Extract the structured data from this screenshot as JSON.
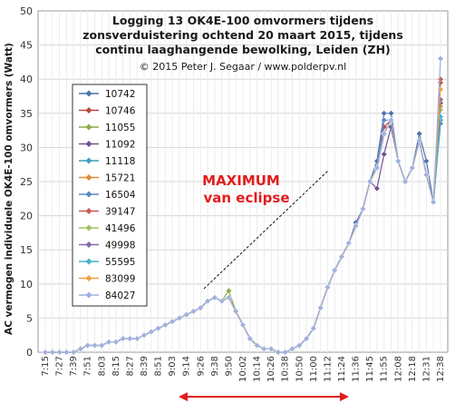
{
  "chart_data": {
    "type": "line",
    "title_lines": [
      "Logging 13 OK4E-100 omvormers tijdens",
      "zonsverduistering ochtend 20 maart 2015, tijdens",
      "continu laaghangende bewolking, Leiden (ZH)"
    ],
    "subtitle": "© 2015 Peter J. Segaar / www.polderpv.nl",
    "ylabel": "AC vermogen individuele OK4E-100 omvormers (Watt)",
    "xlabel": "",
    "ylim": [
      0,
      50
    ],
    "yticks": [
      0,
      5,
      10,
      15,
      20,
      25,
      30,
      35,
      40,
      45,
      50
    ],
    "grid": true,
    "legend_position": "left",
    "x_tick_labels": [
      "7:15",
      "7:27",
      "7:39",
      "7:51",
      "8:03",
      "8:15",
      "8:27",
      "8:39",
      "8:51",
      "9:03",
      "9:14",
      "9:26",
      "9:38",
      "9:50",
      "10:02",
      "10:14",
      "10:26",
      "10:38",
      "10:50",
      "11:00",
      "11:12",
      "11:24",
      "11:36",
      "11:45",
      "11:55",
      "12:08",
      "12:18",
      "12:31",
      "12:38"
    ],
    "x": [
      "7:15",
      "7:21",
      "7:27",
      "7:33",
      "7:39",
      "7:45",
      "7:51",
      "7:57",
      "8:03",
      "8:09",
      "8:15",
      "8:21",
      "8:27",
      "8:33",
      "8:39",
      "8:45",
      "8:51",
      "8:57",
      "9:03",
      "9:08",
      "9:14",
      "9:20",
      "9:26",
      "9:32",
      "9:38",
      "9:44",
      "9:50",
      "9:56",
      "10:02",
      "10:08",
      "10:14",
      "10:20",
      "10:26",
      "10:32",
      "10:38",
      "10:44",
      "10:50",
      "10:55",
      "11:00",
      "11:06",
      "11:12",
      "11:18",
      "11:24",
      "11:30",
      "11:36",
      "11:40",
      "11:45",
      "11:50",
      "11:55",
      "12:01",
      "12:08",
      "12:13",
      "12:18",
      "12:24",
      "12:31",
      "12:34",
      "12:38"
    ],
    "base_profile": [
      0,
      0,
      0,
      0,
      0,
      0.5,
      1,
      1,
      1,
      1.5,
      1.5,
      2,
      2,
      2,
      2.5,
      3,
      3.5,
      4,
      4.5,
      5,
      5.5,
      6,
      6.5,
      7.5,
      8,
      7.5,
      8,
      6,
      4,
      2,
      1,
      0.5,
      0.5,
      0,
      0,
      0.5,
      1,
      2,
      3.5,
      6.5,
      9.5,
      12,
      14,
      16,
      18.5,
      21,
      25,
      27,
      32,
      34,
      28,
      25,
      27,
      31,
      26,
      22,
      21.5
    ],
    "series": [
      {
        "name": "10742",
        "color": "#4a72b0",
        "offsets": [
          0,
          0,
          0,
          0,
          0,
          0,
          0,
          0,
          0,
          0,
          0,
          0,
          0,
          0,
          0,
          0,
          0,
          0,
          0,
          0,
          0,
          0,
          0,
          0,
          0,
          0,
          0,
          0,
          0,
          0,
          0,
          0,
          0,
          0,
          0,
          0,
          0,
          0,
          0,
          0,
          0,
          0,
          0,
          0,
          0.5,
          0,
          0,
          1,
          3,
          1,
          0,
          0,
          0,
          1,
          2,
          0,
          13
        ]
      },
      {
        "name": "10746",
        "color": "#b8483f",
        "offsets": [
          0,
          0,
          0,
          0,
          0,
          0,
          0,
          0,
          0,
          0,
          0,
          0,
          0,
          0,
          0,
          0,
          0,
          0,
          0,
          0,
          0,
          0,
          0,
          0,
          0,
          0,
          0,
          0,
          0,
          0,
          0,
          0,
          0,
          0,
          0,
          0,
          0,
          0,
          0,
          0,
          0,
          0,
          0,
          0,
          0,
          0,
          0,
          0,
          1,
          0,
          0,
          0,
          0,
          0,
          0,
          0,
          18
        ]
      },
      {
        "name": "11055",
        "color": "#8fa94a",
        "offsets": [
          0,
          0,
          0,
          0,
          0,
          0,
          0,
          0,
          0,
          0,
          0,
          0,
          0,
          0,
          0,
          0,
          0,
          0,
          0,
          0,
          0,
          0,
          0,
          0,
          0,
          0,
          1,
          0,
          0,
          0,
          0,
          0,
          0,
          0,
          0,
          0,
          0,
          0,
          0,
          0,
          0,
          0,
          0,
          0,
          0,
          0,
          0,
          0,
          0,
          0,
          0,
          0,
          0,
          0,
          0,
          0,
          14
        ]
      },
      {
        "name": "11092",
        "color": "#6f528f",
        "offsets": [
          0,
          0,
          0,
          0,
          0,
          0,
          0,
          0,
          0,
          0,
          0,
          0,
          0,
          0,
          0,
          0,
          0,
          0,
          0,
          0,
          0,
          0,
          0,
          0,
          0,
          0,
          0,
          0,
          0,
          0,
          0,
          0,
          0,
          0,
          0,
          0,
          0,
          0,
          0,
          0,
          0,
          0,
          0,
          0,
          0,
          0,
          0,
          -3,
          -3,
          -1,
          0,
          0,
          0,
          0,
          0,
          0,
          15
        ]
      },
      {
        "name": "11118",
        "color": "#3fa0b8",
        "offsets": [
          0,
          0,
          0,
          0,
          0,
          0,
          0,
          0,
          0,
          0,
          0,
          0,
          0,
          0,
          0,
          0,
          0,
          0,
          0,
          0,
          0,
          0,
          0,
          0,
          0,
          0,
          0,
          0,
          0,
          0,
          0,
          0,
          0,
          0,
          0,
          0,
          0,
          0,
          0,
          0,
          0,
          0,
          0,
          0,
          0,
          0,
          0,
          0,
          0,
          0,
          0,
          0,
          0,
          0,
          0,
          0,
          12.5
        ]
      },
      {
        "name": "15721",
        "color": "#e08a3a",
        "offsets": [
          0,
          0,
          0,
          0,
          0,
          0,
          0,
          0,
          0,
          0,
          0,
          0,
          0,
          0,
          0,
          0,
          0,
          0,
          0,
          0,
          0,
          0,
          0,
          0,
          0,
          0,
          0,
          0,
          0,
          0,
          0,
          0,
          0,
          0,
          0,
          0,
          0,
          0,
          0,
          0,
          0,
          0,
          0,
          0,
          0,
          0,
          0,
          0,
          0,
          0,
          0,
          0,
          0,
          0,
          0,
          0,
          14.5
        ]
      },
      {
        "name": "16504",
        "color": "#5b87c8",
        "offsets": [
          0,
          0,
          0,
          0,
          0,
          0,
          0,
          0,
          0,
          0,
          0,
          0,
          0,
          0,
          0,
          0,
          0,
          0,
          0,
          0,
          0,
          0,
          0,
          0,
          0,
          0,
          0,
          0,
          0,
          0,
          0,
          0,
          0,
          0,
          0,
          0,
          0,
          0,
          0,
          0,
          0,
          0,
          0,
          0,
          0,
          0,
          0,
          0,
          2,
          0,
          0,
          0,
          0,
          0,
          0,
          0,
          12
        ]
      },
      {
        "name": "39147",
        "color": "#c85a50",
        "offsets": [
          0,
          0,
          0,
          0,
          0,
          0,
          0,
          0,
          0,
          0,
          0,
          0,
          0,
          0,
          0,
          0,
          0,
          0,
          0,
          0,
          0,
          0,
          0,
          0,
          0,
          0,
          0,
          0,
          0,
          0,
          0,
          0,
          0,
          0,
          0,
          0,
          0,
          0,
          0,
          0,
          0,
          0,
          0,
          0,
          0,
          0,
          0,
          0,
          0,
          0,
          0,
          0,
          0,
          0,
          0,
          0,
          18.5
        ]
      },
      {
        "name": "41496",
        "color": "#a4c060",
        "offsets": [
          0,
          0,
          0,
          0,
          0,
          0,
          0,
          0,
          0,
          0,
          0,
          0,
          0,
          0,
          0,
          0,
          0,
          0,
          0,
          0,
          0,
          0,
          0,
          0,
          0,
          0,
          0,
          0,
          0,
          0,
          0,
          0,
          0,
          0,
          0,
          0,
          0,
          0,
          0,
          0,
          0,
          0,
          0,
          0,
          0,
          0,
          0,
          0,
          0,
          0,
          0,
          0,
          0,
          0,
          0,
          0,
          14
        ]
      },
      {
        "name": "49998",
        "color": "#8468a8",
        "offsets": [
          0,
          0,
          0,
          0,
          0,
          0,
          0,
          0,
          0,
          0,
          0,
          0,
          0,
          0,
          0,
          0,
          0,
          0,
          0,
          0,
          0,
          0,
          0,
          0,
          0,
          0,
          0,
          0,
          0,
          0,
          0,
          0,
          0,
          0,
          0,
          0,
          0,
          0,
          0,
          0,
          0,
          0,
          0,
          0,
          0,
          0,
          0,
          0,
          0,
          0,
          0,
          0,
          0,
          0,
          0,
          0,
          15.5
        ]
      },
      {
        "name": "55595",
        "color": "#40b4cc",
        "offsets": [
          0,
          0,
          0,
          0,
          0,
          0,
          0,
          0,
          0,
          0,
          0,
          0,
          0,
          0,
          0,
          0,
          0,
          0,
          0,
          0,
          0,
          0,
          0,
          0,
          0,
          0,
          0,
          0,
          0,
          0,
          0,
          0,
          0,
          0,
          0,
          0,
          0,
          0,
          0,
          0,
          0,
          0,
          0,
          0,
          0,
          0,
          0,
          0,
          0,
          0,
          0,
          0,
          0,
          0,
          0,
          0,
          13
        ]
      },
      {
        "name": "83099",
        "color": "#f0a040",
        "offsets": [
          0,
          0,
          0,
          0,
          0,
          0,
          0,
          0,
          0,
          0,
          0,
          0,
          0,
          0,
          0,
          0,
          0,
          0,
          0,
          0,
          0,
          0,
          0,
          0,
          0,
          0,
          0,
          0,
          0,
          0,
          0,
          0,
          0,
          0,
          0,
          0,
          0,
          0,
          0,
          0,
          0,
          0,
          0,
          0,
          0,
          0,
          0,
          0,
          0,
          0,
          0,
          0,
          0,
          0,
          0,
          0,
          17
        ]
      },
      {
        "name": "84027",
        "color": "#9fb0e0",
        "offsets": [
          0,
          0,
          0,
          0,
          0,
          0,
          0,
          0,
          0,
          0,
          0,
          0,
          0,
          0,
          0,
          0,
          0,
          0,
          0,
          0,
          0,
          0,
          0,
          0,
          0,
          0,
          0,
          0,
          0,
          0,
          0,
          0,
          0,
          0,
          0,
          0,
          0,
          0,
          0,
          0,
          0,
          0,
          0,
          0,
          0,
          0,
          0,
          0,
          0,
          0,
          0,
          0,
          0,
          0,
          0,
          0,
          21.5
        ]
      }
    ],
    "annotations": {
      "maximum_line1": "MAXIMUM",
      "maximum_line2": "van eclipse",
      "color": "#e11d1d"
    }
  }
}
